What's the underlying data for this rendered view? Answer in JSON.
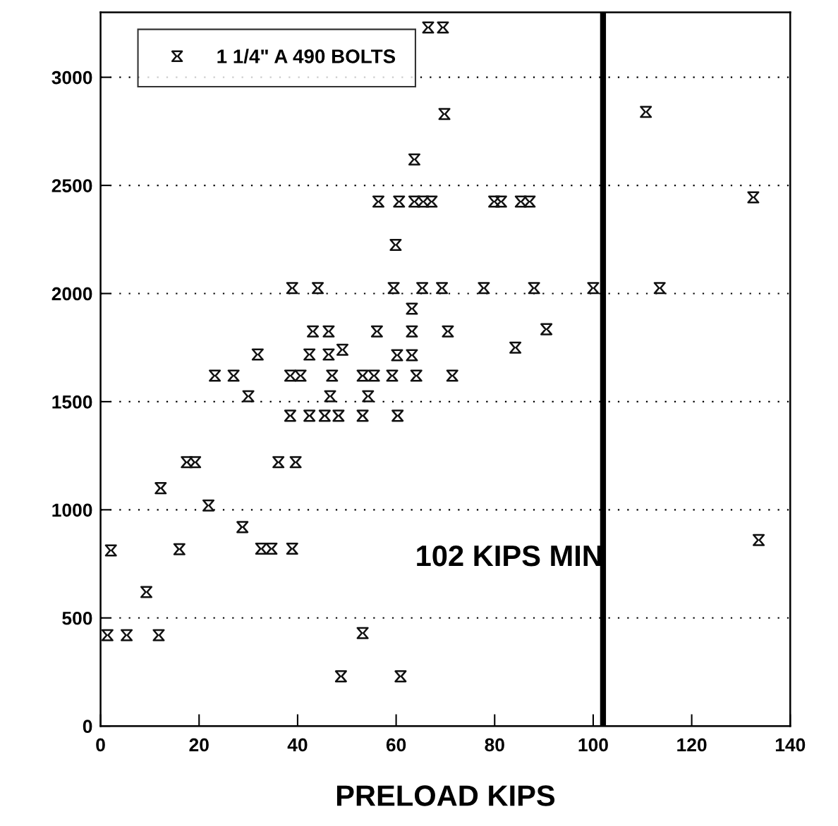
{
  "chart_data": {
    "type": "scatter",
    "xlabel": "PRELOAD KIPS",
    "xlim": [
      0,
      140
    ],
    "xticks": [
      0,
      20,
      40,
      60,
      80,
      100,
      120,
      140
    ],
    "ylim": [
      0,
      3300
    ],
    "yticks": [
      0,
      500,
      1000,
      1500,
      2000,
      2500,
      3000
    ],
    "grid": "y",
    "legend": "top left",
    "series": [
      {
        "name": "1 1/4\" A 490 BOLTS",
        "color": "#111111",
        "x": [
          1.4,
          5.3,
          11.8,
          2.1,
          16.0,
          9.3,
          12.2,
          17.5,
          19.2,
          21.9,
          28.8,
          32.6,
          34.7,
          38.9,
          23.2,
          27.0,
          38.5,
          40.6,
          47.0,
          53.2,
          55.5,
          59.2,
          64.1,
          71.4,
          30.0,
          46.6,
          54.3,
          36.1,
          39.6,
          38.5,
          42.4,
          45.5,
          48.3,
          53.2,
          60.3,
          31.9,
          42.4,
          46.3,
          49.1,
          60.2,
          63.2,
          43.1,
          46.3,
          56.1,
          63.2,
          70.5,
          63.2,
          38.9,
          44.1,
          59.5,
          65.3,
          69.3,
          77.8,
          88.0,
          100.0,
          113.5,
          59.9,
          90.5,
          84.2,
          56.4,
          60.6,
          63.7,
          65.5,
          67.2,
          79.9,
          81.3,
          85.3,
          87.1,
          63.7,
          69.8,
          66.5,
          69.5,
          110.7,
          132.5,
          133.6,
          53.2,
          48.8,
          60.9
        ],
        "values": [
          420,
          420,
          420,
          812,
          818,
          620,
          1100,
          1220,
          1220,
          1020,
          920,
          820,
          820,
          820,
          1620,
          1620,
          1620,
          1620,
          1620,
          1620,
          1620,
          1620,
          1620,
          1620,
          1525,
          1525,
          1525,
          1220,
          1220,
          1435,
          1435,
          1435,
          1435,
          1435,
          1435,
          1718,
          1718,
          1718,
          1740,
          1715,
          1715,
          1825,
          1825,
          1825,
          1825,
          1825,
          1930,
          2025,
          2025,
          2025,
          2025,
          2025,
          2025,
          2025,
          2025,
          2025,
          2225,
          1835,
          1750,
          2425,
          2425,
          2425,
          2425,
          2425,
          2425,
          2425,
          2425,
          2425,
          2620,
          2830,
          3230,
          3230,
          2840,
          2445,
          860,
          430,
          230,
          230
        ]
      }
    ],
    "ref_lines": [
      {
        "axis": "x",
        "value": 102,
        "label": "102 KIPS MIN",
        "color": "#000000"
      }
    ]
  }
}
